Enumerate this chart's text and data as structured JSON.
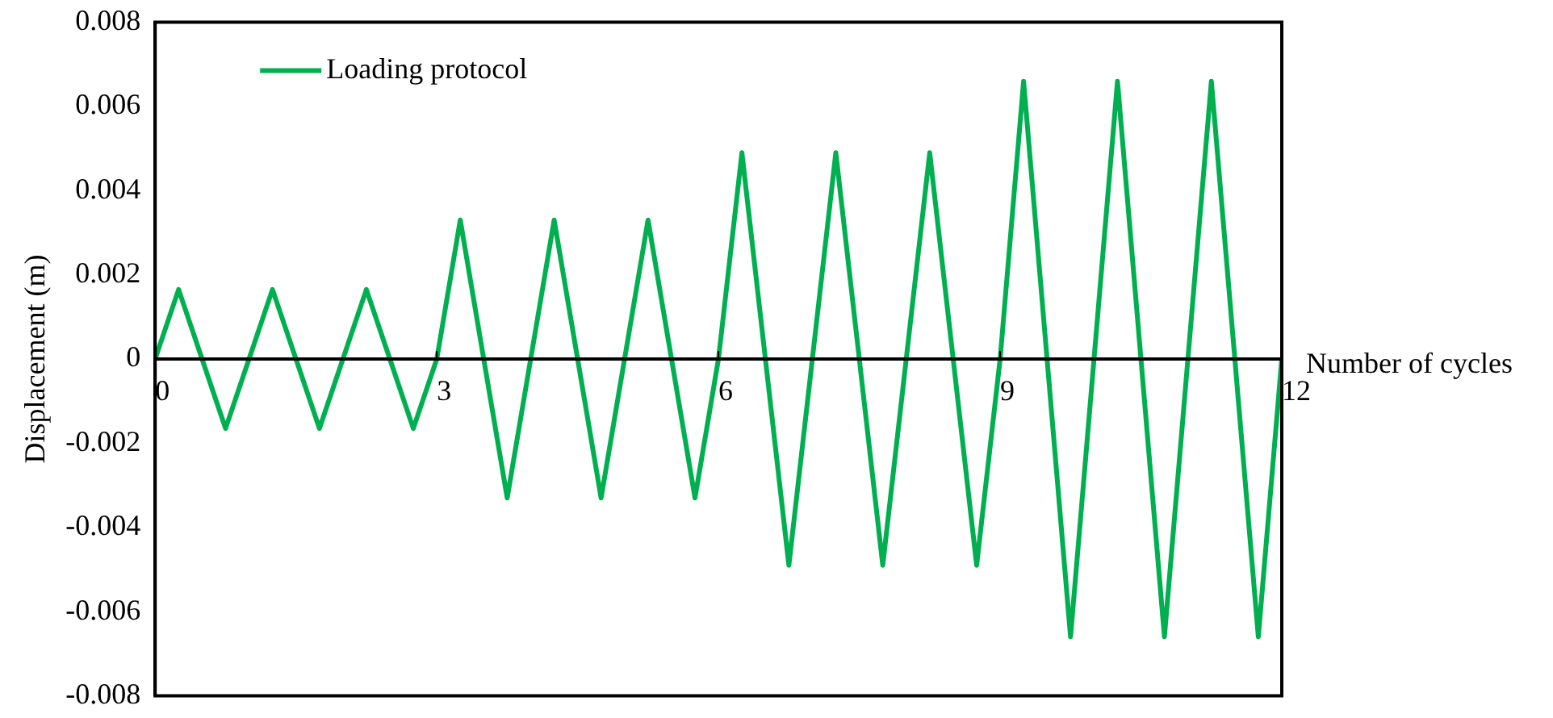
{
  "chart_data": {
    "type": "line",
    "xlabel": "Number of cycles",
    "ylabel": "Displacement (m)",
    "x": [
      0,
      0.25,
      0.5,
      0.75,
      1,
      1.25,
      1.5,
      1.75,
      2,
      2.25,
      2.5,
      2.75,
      3,
      3.25,
      3.5,
      3.75,
      4,
      4.25,
      4.5,
      4.75,
      5,
      5.25,
      5.5,
      5.75,
      6,
      6.25,
      6.5,
      6.75,
      7,
      7.25,
      7.5,
      7.75,
      8,
      8.25,
      8.5,
      8.75,
      9,
      9.25,
      9.5,
      9.75,
      10,
      10.25,
      10.5,
      10.75,
      11,
      11.25,
      11.5,
      11.75,
      12
    ],
    "series": [
      {
        "name": "Loading protocol",
        "color": "#00b050",
        "values": [
          0,
          0.00165,
          0,
          -0.00165,
          0,
          0.00165,
          0,
          -0.00165,
          0,
          0.00165,
          0,
          -0.00165,
          0,
          0.0033,
          0,
          -0.0033,
          0,
          0.0033,
          0,
          -0.0033,
          0,
          0.0033,
          0,
          -0.0033,
          0,
          0.0049,
          0,
          -0.0049,
          0,
          0.0049,
          0,
          -0.0049,
          0,
          0.0049,
          0,
          -0.0049,
          0,
          0.0066,
          0,
          -0.0066,
          0,
          0.0066,
          0,
          -0.0066,
          0,
          0.0066,
          0,
          -0.0066,
          0
        ]
      }
    ],
    "xlim": [
      0,
      12
    ],
    "xticks": [
      0,
      3,
      6,
      9,
      12
    ],
    "ylim": [
      -0.008,
      0.008
    ],
    "yticks": [
      -0.008,
      -0.006,
      -0.004,
      -0.002,
      0,
      0.002,
      0.004,
      0.006,
      0.008
    ],
    "grid": false,
    "legend": "top left",
    "marker": "none",
    "line_style": "solid"
  }
}
